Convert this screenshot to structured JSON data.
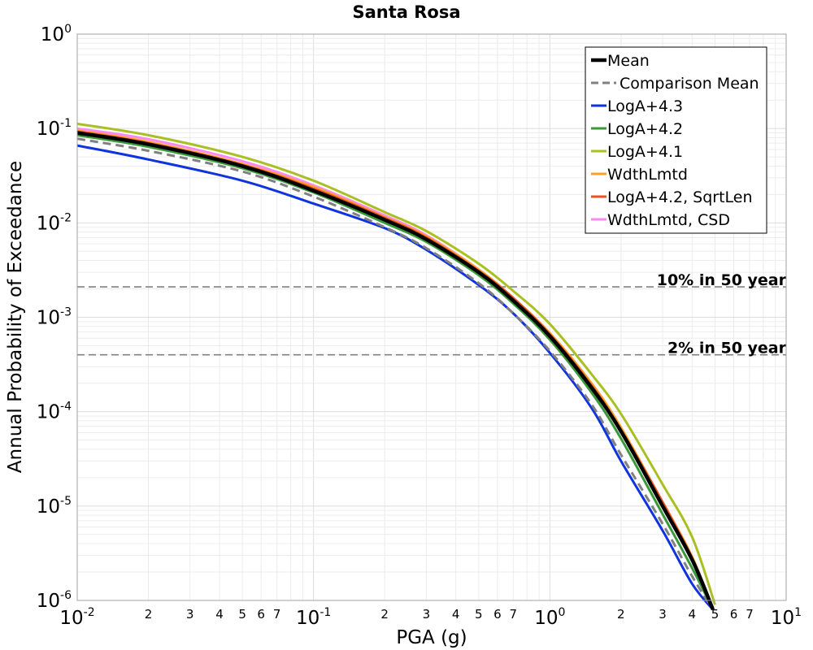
{
  "chart_data": {
    "type": "line",
    "title": "Santa Rosa",
    "xlabel": "PGA (g)",
    "ylabel": "Annual Probability of Exceedance",
    "xscale": "log",
    "yscale": "log",
    "xlim": [
      0.01,
      10
    ],
    "ylim": [
      1e-06,
      1
    ],
    "grid": true,
    "legend_position": "top-right",
    "x_major_ticks": [
      {
        "value": 0.01,
        "base": "10",
        "exp": "-2"
      },
      {
        "value": 0.1,
        "base": "10",
        "exp": "-1"
      },
      {
        "value": 1,
        "base": "10",
        "exp": "0"
      },
      {
        "value": 10,
        "base": "10",
        "exp": "1"
      }
    ],
    "x_minor_tick_labels": [
      "2",
      "3",
      "4",
      "5",
      "6",
      "7"
    ],
    "y_major_ticks": [
      {
        "value": 1,
        "base": "10",
        "exp": "0"
      },
      {
        "value": 0.1,
        "base": "10",
        "exp": "-1"
      },
      {
        "value": 0.01,
        "base": "10",
        "exp": "-2"
      },
      {
        "value": 0.001,
        "base": "10",
        "exp": "-3"
      },
      {
        "value": 0.0001,
        "base": "10",
        "exp": "-4"
      },
      {
        "value": 1e-05,
        "base": "10",
        "exp": "-5"
      },
      {
        "value": 1e-06,
        "base": "10",
        "exp": "-6"
      }
    ],
    "reference_lines": [
      {
        "label": "10% in 50 year",
        "y": 0.0021
      },
      {
        "label": "2% in 50 year",
        "y": 0.0004
      }
    ],
    "series": [
      {
        "name": "LogA+4.3",
        "color": "#1033e0",
        "style": "solid",
        "x": [
          0.01,
          0.02,
          0.05,
          0.1,
          0.2,
          0.3,
          0.5,
          0.7,
          1.0,
          1.5,
          2.0,
          3.0,
          4.0,
          4.9
        ],
        "y": [
          0.066,
          0.047,
          0.028,
          0.016,
          0.0088,
          0.0052,
          0.0022,
          0.0011,
          0.00042,
          0.00011,
          3e-05,
          5.5e-06,
          1.5e-06,
          8e-07
        ]
      },
      {
        "name": "LogA+4.2",
        "color": "#3a9a3a",
        "style": "solid",
        "x": [
          0.01,
          0.02,
          0.05,
          0.1,
          0.2,
          0.3,
          0.5,
          0.7,
          1.0,
          1.5,
          2.0,
          3.0,
          4.0,
          4.9
        ],
        "y": [
          0.085,
          0.064,
          0.038,
          0.021,
          0.01,
          0.0063,
          0.0028,
          0.0014,
          0.00058,
          0.00016,
          5.2e-05,
          8.2e-06,
          2.2e-06,
          8e-07
        ]
      },
      {
        "name": "LogA+4.1",
        "color": "#aabf22",
        "style": "solid",
        "x": [
          0.01,
          0.02,
          0.05,
          0.1,
          0.2,
          0.3,
          0.5,
          0.7,
          1.0,
          1.5,
          2.0,
          3.0,
          4.0,
          5.0
        ],
        "y": [
          0.112,
          0.085,
          0.05,
          0.028,
          0.013,
          0.0082,
          0.0037,
          0.0019,
          0.00085,
          0.00025,
          9.5e-05,
          1.7e-05,
          4.7e-06,
          9e-07
        ]
      },
      {
        "name": "WdthLmtd",
        "color": "#ffa020",
        "style": "solid",
        "x": [
          0.01,
          0.02,
          0.05,
          0.1,
          0.2,
          0.3,
          0.5,
          0.7,
          1.0,
          1.5,
          2.0,
          3.0,
          4.0,
          4.9
        ],
        "y": [
          0.095,
          0.072,
          0.042,
          0.024,
          0.0115,
          0.0072,
          0.0032,
          0.0016,
          0.00068,
          0.0002,
          6.8e-05,
          1.1e-05,
          2.9e-06,
          8e-07
        ]
      },
      {
        "name": "LogA+4.2, SqrtLen",
        "color": "#ee5020",
        "style": "solid",
        "x": [
          0.01,
          0.02,
          0.05,
          0.1,
          0.2,
          0.3,
          0.5,
          0.7,
          1.0,
          1.5,
          2.0,
          3.0,
          4.0,
          4.9
        ],
        "y": [
          0.093,
          0.07,
          0.041,
          0.023,
          0.0113,
          0.007,
          0.0031,
          0.0016,
          0.00066,
          0.00019,
          6.4e-05,
          1.1e-05,
          2.8e-06,
          8e-07
        ]
      },
      {
        "name": "WdthLmtd, CSD",
        "color": "#ff88ee",
        "style": "solid",
        "x": [
          0.01,
          0.02,
          0.05,
          0.1,
          0.2,
          0.3,
          0.5,
          0.7,
          1.0,
          1.5,
          2.0,
          3.0,
          4.0,
          4.9
        ],
        "y": [
          0.1,
          0.077,
          0.045,
          0.025,
          0.012,
          0.0074,
          0.0032,
          0.0016,
          0.00067,
          0.00019,
          6.4e-05,
          1.1e-05,
          2.8e-06,
          8e-07
        ]
      },
      {
        "name": "Comparison Mean",
        "color": "#808080",
        "style": "dashed",
        "x": [
          0.01,
          0.02,
          0.05,
          0.1,
          0.2,
          0.3,
          0.5,
          0.7,
          1.0,
          1.5,
          2.0,
          3.0,
          4.0,
          4.9
        ],
        "y": [
          0.078,
          0.058,
          0.035,
          0.019,
          0.009,
          0.0054,
          0.0023,
          0.0011,
          0.00044,
          0.00012,
          3.5e-05,
          6.5e-06,
          1.8e-06,
          8e-07
        ]
      },
      {
        "name": "Mean",
        "color": "#000000",
        "style": "solid-bold",
        "x": [
          0.01,
          0.02,
          0.05,
          0.1,
          0.2,
          0.3,
          0.5,
          0.7,
          1.0,
          1.5,
          2.0,
          3.0,
          4.0,
          4.9
        ],
        "y": [
          0.09,
          0.068,
          0.04,
          0.022,
          0.0108,
          0.0067,
          0.003,
          0.0015,
          0.00063,
          0.00018,
          6.2e-05,
          1e-05,
          2.7e-06,
          8e-07
        ]
      }
    ],
    "legend_order": [
      "Mean",
      "Comparison Mean",
      "LogA+4.3",
      "LogA+4.2",
      "LogA+4.1",
      "WdthLmtd",
      "LogA+4.2, SqrtLen",
      "WdthLmtd, CSD"
    ]
  }
}
